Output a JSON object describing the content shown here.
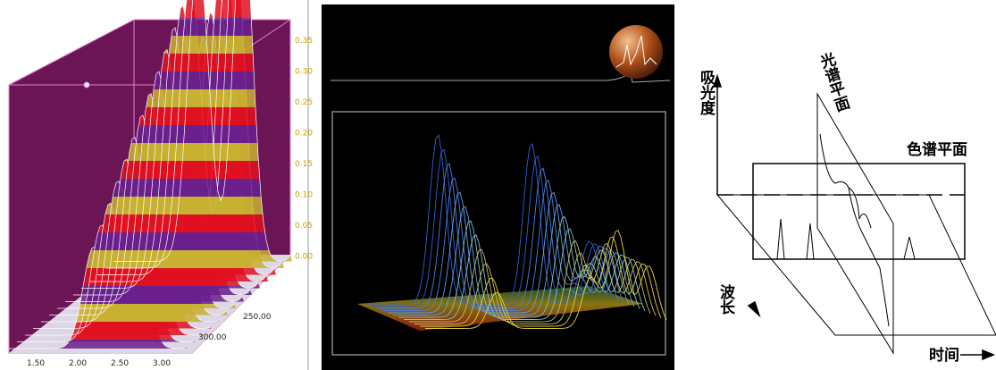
{
  "left_panel": {
    "z_ticks": [
      "0.35",
      "0.30",
      "0.25",
      "0.20",
      "0.15",
      "0.10",
      "0.05",
      "0.00"
    ],
    "depth_ticks": [
      "250.00",
      "300.00"
    ],
    "x_ticks": [
      "1.50",
      "2.00",
      "2.50",
      "3.00"
    ]
  },
  "right_panel": {
    "y_axis_label": "吸光度",
    "spectrum_plane_label": "光谱平面",
    "chromatogram_plane_label": "色谱平面",
    "wavelength_label": "波长",
    "time_label": "时间"
  }
}
